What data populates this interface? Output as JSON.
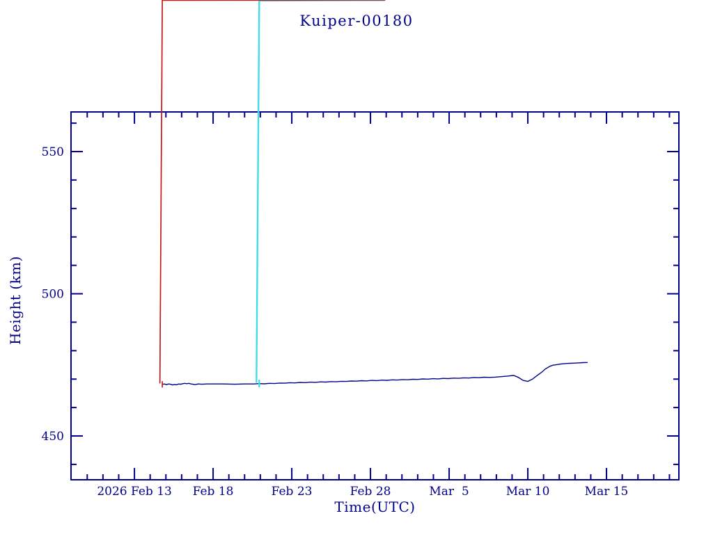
{
  "page": {
    "background": "#ffffff",
    "accent": "#00008b"
  },
  "chart": {
    "title": "Kuiper-00180",
    "xlabel": "Time(UTC)",
    "ylabel": "Height (km)"
  },
  "chart_data": {
    "type": "line",
    "title": "Kuiper-00180",
    "xlabel": "Time(UTC)",
    "ylabel": "Height (km)",
    "x_epoch_label": "2026 Feb 13",
    "x_range_days": [
      -4.03,
      34.6
    ],
    "y_range": [
      434.6,
      563.94
    ],
    "x_ticks_major": [
      {
        "day": 0,
        "label": "2026 Feb 13"
      },
      {
        "day": 5,
        "label": "Feb 18"
      },
      {
        "day": 10,
        "label": "Feb 23"
      },
      {
        "day": 15,
        "label": "Feb 28"
      },
      {
        "day": 20,
        "label": "Mar  5"
      },
      {
        "day": 25,
        "label": "Mar 10"
      },
      {
        "day": 30,
        "label": "Mar 15"
      }
    ],
    "x_minor_step_days": 1,
    "y_ticks_major": [
      {
        "value": 450,
        "label": "450"
      },
      {
        "value": 500,
        "label": "500"
      },
      {
        "value": 550,
        "label": "550"
      }
    ],
    "y_minor_step": 10,
    "grid": false,
    "legend": "none",
    "colors": {
      "axis": "#00008b",
      "line": "#00008b",
      "red_marker": "#c41a1a",
      "cyan_marker": "#3fdde8"
    },
    "points": [
      [
        1.77,
        468.15,
        "r"
      ],
      [
        1.9,
        468.3,
        "r"
      ],
      [
        2.03,
        468.05,
        "r"
      ],
      [
        2.16,
        468.3,
        "r"
      ],
      [
        2.29,
        468.2,
        "r"
      ],
      [
        2.42,
        467.95,
        "r"
      ],
      [
        2.55,
        468.1,
        "r"
      ],
      [
        2.68,
        468.0,
        "r"
      ],
      [
        2.81,
        468.3,
        "r"
      ],
      [
        2.94,
        468.2,
        "r"
      ],
      [
        3.07,
        468.4,
        "r"
      ],
      [
        3.2,
        468.5,
        "r"
      ],
      [
        3.33,
        468.4,
        "r"
      ],
      [
        3.46,
        468.5,
        "r"
      ],
      [
        3.59,
        468.3,
        "r"
      ],
      [
        3.72,
        468.2,
        "r"
      ],
      [
        3.85,
        468.05,
        "r"
      ],
      [
        4.05,
        468.3,
        "r"
      ],
      [
        4.3,
        468.2,
        "r"
      ],
      [
        4.6,
        468.3,
        "r"
      ],
      [
        5.6,
        468.3,
        "r"
      ],
      [
        6.4,
        468.2,
        "r"
      ],
      [
        7.0,
        468.3,
        "r"
      ],
      [
        7.6,
        468.3,
        "r"
      ],
      [
        7.93,
        468.41,
        "c"
      ],
      [
        8.25,
        468.34,
        "c"
      ],
      [
        8.58,
        468.51,
        "r"
      ],
      [
        8.9,
        468.44,
        "c"
      ],
      [
        9.23,
        468.62,
        "r"
      ],
      [
        9.55,
        468.55,
        "c"
      ],
      [
        9.88,
        468.72,
        "c"
      ],
      [
        10.2,
        468.65,
        "r"
      ],
      [
        10.53,
        468.82,
        "r"
      ],
      [
        10.85,
        468.75,
        "c"
      ],
      [
        11.18,
        468.92,
        "r"
      ],
      [
        11.5,
        468.85,
        "c"
      ],
      [
        11.83,
        469.02,
        "c"
      ],
      [
        12.15,
        468.95,
        "r"
      ],
      [
        12.48,
        469.13,
        "c"
      ],
      [
        12.8,
        469.06,
        "r"
      ],
      [
        13.13,
        469.23,
        "c"
      ],
      [
        13.45,
        469.16,
        "r"
      ],
      [
        13.78,
        469.33,
        "c"
      ],
      [
        14.1,
        469.26,
        "c"
      ],
      [
        14.43,
        469.43,
        "r"
      ],
      [
        14.75,
        469.36,
        "c"
      ],
      [
        15.08,
        469.53,
        "r"
      ],
      [
        15.4,
        469.46,
        "r"
      ],
      [
        15.73,
        469.64,
        "c"
      ],
      [
        16.05,
        469.57,
        "r"
      ],
      [
        16.38,
        469.74,
        "c"
      ],
      [
        16.7,
        469.67,
        "r"
      ],
      [
        17.03,
        469.84,
        "c"
      ],
      [
        17.35,
        469.77,
        "r"
      ],
      [
        17.68,
        469.94,
        "c"
      ],
      [
        18.0,
        469.87,
        "c"
      ],
      [
        18.33,
        470.05,
        "r"
      ],
      [
        18.65,
        469.98,
        "c"
      ],
      [
        18.98,
        470.15,
        "r"
      ],
      [
        19.3,
        470.08,
        "c"
      ],
      [
        19.63,
        470.25,
        "r"
      ],
      [
        19.95,
        470.18,
        "c"
      ],
      [
        20.28,
        470.35,
        "c"
      ],
      [
        20.6,
        470.28,
        "r"
      ],
      [
        20.93,
        470.45,
        "c"
      ],
      [
        21.25,
        470.38,
        "r"
      ],
      [
        21.58,
        470.56,
        "c"
      ],
      [
        21.9,
        470.49,
        "r"
      ],
      [
        22.23,
        470.66,
        "c"
      ],
      [
        22.55,
        470.59,
        "c"
      ],
      [
        22.9,
        470.7,
        "r"
      ],
      [
        23.3,
        470.85,
        "c"
      ],
      [
        23.7,
        471.05,
        "r"
      ],
      [
        24.1,
        471.3,
        "r"
      ],
      [
        24.4,
        470.6,
        "c"
      ],
      [
        24.7,
        469.55,
        "c"
      ],
      [
        25.0,
        469.2,
        "c"
      ],
      [
        25.3,
        470.0,
        "r"
      ],
      [
        25.6,
        471.3,
        "c"
      ],
      [
        25.9,
        472.5,
        "r"
      ],
      [
        26.1,
        473.5,
        "c"
      ],
      [
        26.4,
        474.5,
        "r"
      ],
      [
        26.6,
        474.9,
        "c"
      ],
      [
        26.9,
        475.15,
        "r"
      ],
      [
        27.1,
        475.3,
        "c"
      ],
      [
        27.3,
        475.4,
        "c"
      ],
      [
        27.5,
        475.5,
        "c"
      ],
      [
        27.7,
        475.55,
        "c"
      ],
      [
        27.9,
        475.6,
        "r"
      ],
      [
        28.2,
        475.7,
        "r"
      ],
      [
        28.5,
        475.8,
        "c"
      ],
      [
        28.8,
        475.85,
        "r"
      ]
    ]
  }
}
